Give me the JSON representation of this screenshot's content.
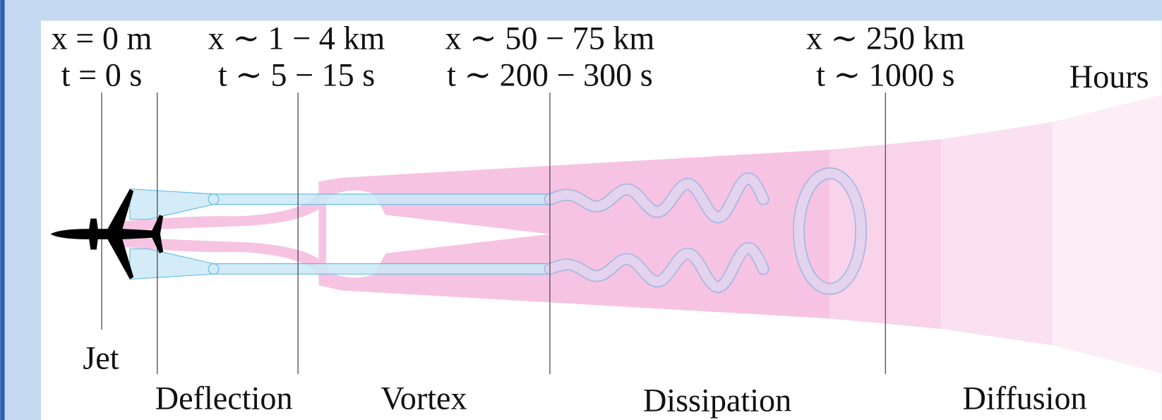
{
  "markers": [
    {
      "x_label": "x = 0 m",
      "t_label": "t = 0 s"
    },
    {
      "x_label": "x ∼ 1 − 4 km",
      "t_label": "t ∼ 5 − 15 s"
    },
    {
      "x_label": "x ∼ 50 − 75 km",
      "t_label": "t ∼ 200 − 300 s"
    },
    {
      "x_label": "x ∼ 250 km",
      "t_label": "t ∼ 1000 s"
    }
  ],
  "hours_label": "Hours",
  "phases": [
    "Jet",
    "Deflection",
    "Vortex",
    "Dissipation",
    "Diffusion"
  ]
}
